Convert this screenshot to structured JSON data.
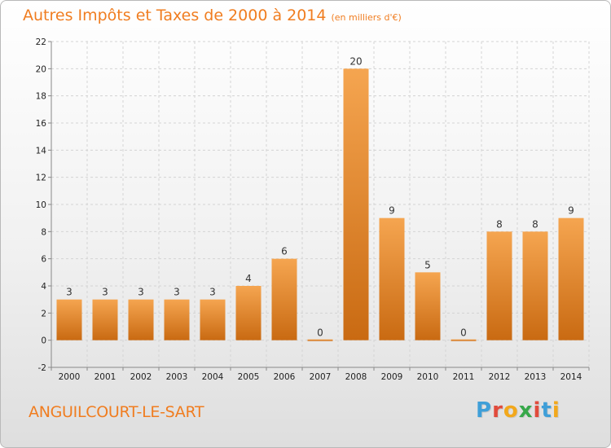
{
  "title": "Autres Impôts et Taxes de 2000 à 2014",
  "unit": "(en milliers d'€)",
  "commune": "ANGUILCOURT-LE-SART",
  "logo": {
    "letters": [
      "P",
      "r",
      "o",
      "x",
      "i",
      "t",
      "i"
    ],
    "colors": [
      "#3f9fd8",
      "#e14b3c",
      "#f2a81c",
      "#37a84a",
      "#e14b3c",
      "#3f9fd8",
      "#f2a81c"
    ]
  },
  "colors": {
    "bar_light": "#f5a550",
    "bar_dark": "#c96a12",
    "accent": "#f07d20"
  },
  "chart_data": {
    "type": "bar",
    "categories": [
      "2000",
      "2001",
      "2002",
      "2003",
      "2004",
      "2005",
      "2006",
      "2007",
      "2008",
      "2009",
      "2010",
      "2011",
      "2012",
      "2013",
      "2014"
    ],
    "values": [
      3,
      3,
      3,
      3,
      3,
      4,
      6,
      0,
      20,
      9,
      5,
      0,
      8,
      8,
      9
    ],
    "labels": [
      "3",
      "3",
      "3",
      "3",
      "3",
      "4",
      "6",
      "0",
      "20",
      "9",
      "5",
      "0",
      "8",
      "8",
      "9"
    ],
    "yticks": [
      "-2",
      "0",
      "2",
      "4",
      "6",
      "8",
      "10",
      "12",
      "14",
      "16",
      "18",
      "20",
      "22"
    ],
    "ylim": [
      -2,
      22
    ],
    "grid": true
  }
}
